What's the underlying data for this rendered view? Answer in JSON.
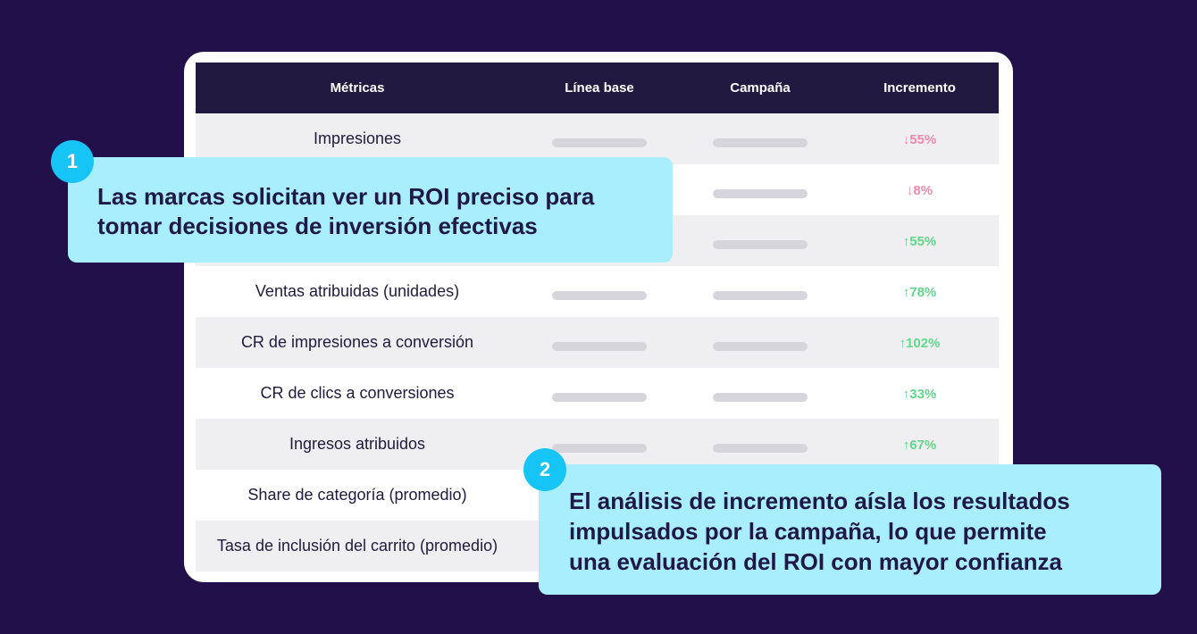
{
  "table": {
    "headers": [
      "Métricas",
      "Línea base",
      "Campaña",
      "Incremento"
    ],
    "rows": [
      {
        "metric": "Impresiones",
        "increment": "↓55%",
        "direction": "down"
      },
      {
        "metric": "",
        "increment": "↓8%",
        "direction": "down"
      },
      {
        "metric": "",
        "increment": "↑55%",
        "direction": "up"
      },
      {
        "metric": "Ventas atribuidas (unidades)",
        "increment": "↑78%",
        "direction": "up"
      },
      {
        "metric": "CR de impresiones a conversión",
        "increment": "↑102%",
        "direction": "up"
      },
      {
        "metric": "CR de clics a conversiones",
        "increment": "↑33%",
        "direction": "up"
      },
      {
        "metric": "Ingresos atribuidos",
        "increment": "↑67%",
        "direction": "up"
      },
      {
        "metric": "Share de categoría (promedio)",
        "increment": "",
        "direction": "up"
      },
      {
        "metric": "Tasa de inclusión del carrito (promedio)",
        "increment": "",
        "direction": "up"
      }
    ]
  },
  "callouts": [
    {
      "number": "1",
      "lines": [
        "Las marcas solicitan ver un ROI preciso para",
        "tomar decisiones de inversión efectivas"
      ]
    },
    {
      "number": "2",
      "lines": [
        "El análisis de incremento aísla los resultados",
        "impulsados por la campaña, lo que permite",
        "una evaluación del ROI con mayor confianza"
      ]
    }
  ],
  "colors": {
    "background": "#21104a",
    "header": "#21193f",
    "callout": "#a9eefc",
    "badge": "#16c4f5",
    "increase": "#62d68a",
    "decrease": "#f08aa8"
  }
}
